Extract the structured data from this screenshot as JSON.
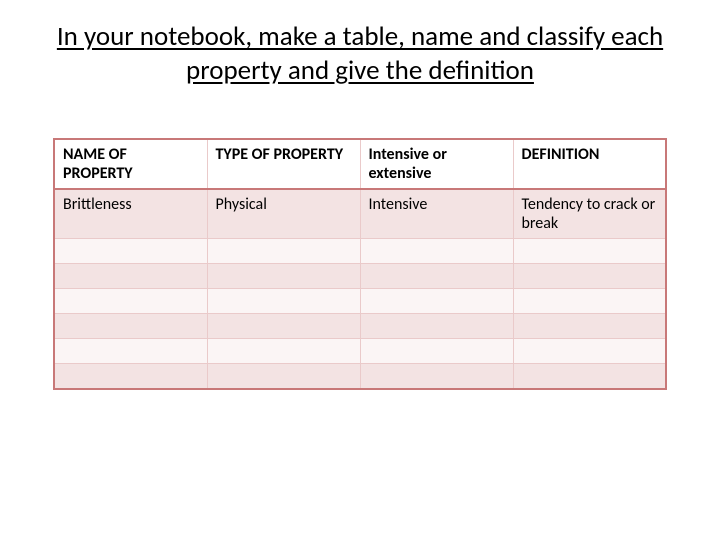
{
  "title": "In your notebook, make a table, name and classify each property and give the definition",
  "table": {
    "columns": [
      {
        "label": "NAME OF PROPERTY",
        "width": 153
      },
      {
        "label": "TYPE OF PROPERTY",
        "width": 153
      },
      {
        "label": "Intensive or extensive",
        "width": 153
      },
      {
        "label": "DEFINITION",
        "width": 153
      }
    ],
    "rows": [
      [
        "Brittleness",
        "Physical",
        "Intensive",
        "Tendency to crack or break"
      ],
      [
        "",
        "",
        "",
        ""
      ],
      [
        "",
        "",
        "",
        ""
      ],
      [
        "",
        "",
        "",
        ""
      ],
      [
        "",
        "",
        "",
        ""
      ],
      [
        "",
        "",
        "",
        ""
      ],
      [
        "",
        "",
        "",
        ""
      ]
    ],
    "colors": {
      "border_outer": "#c87878",
      "border_inner": "#eacaca",
      "band_a": "#f3e3e3",
      "band_b": "#fbf5f5",
      "background": "#ffffff",
      "text": "#000000"
    },
    "fontsize": {
      "title": 27,
      "cell": 16
    }
  }
}
